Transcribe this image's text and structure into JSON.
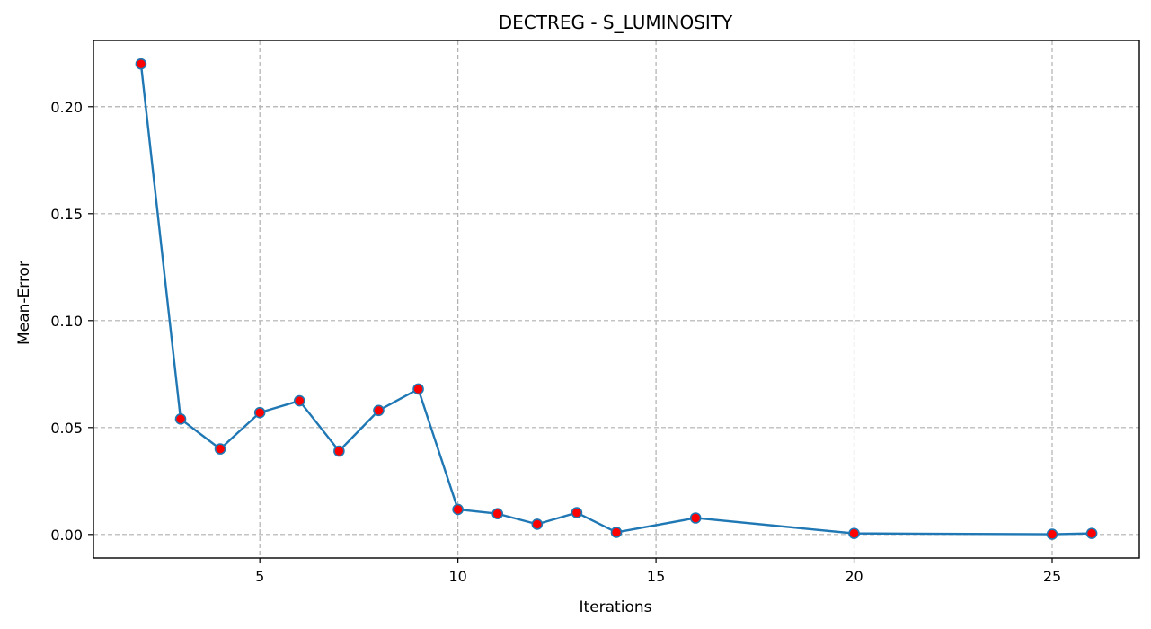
{
  "chart_data": {
    "type": "line",
    "title": "DECTREG - S_LUMINOSITY",
    "xlabel": "Iterations",
    "ylabel": "Mean-Error",
    "xlim": [
      0.8,
      27.2
    ],
    "ylim": [
      -0.011,
      0.231
    ],
    "xticks": [
      5,
      10,
      15,
      20,
      25
    ],
    "yticks": [
      0.0,
      0.05,
      0.1,
      0.15,
      0.2
    ],
    "ytick_labels": [
      "0.00",
      "0.05",
      "0.10",
      "0.15",
      "0.20"
    ],
    "grid": true,
    "series": [
      {
        "x": [
          2,
          3,
          4,
          5,
          6,
          7,
          8,
          9,
          10,
          11,
          12,
          13,
          14,
          16,
          20,
          25,
          26
        ],
        "y": [
          0.22,
          0.054,
          0.04,
          0.057,
          0.0625,
          0.039,
          0.058,
          0.068,
          0.0117,
          0.0097,
          0.0048,
          0.0102,
          0.001,
          0.0077,
          0.0005,
          0.0001,
          0.0005
        ],
        "color": "#1f77b4",
        "marker_color": "#ff0000",
        "marker_edge_color": "#1f77b4"
      }
    ]
  }
}
